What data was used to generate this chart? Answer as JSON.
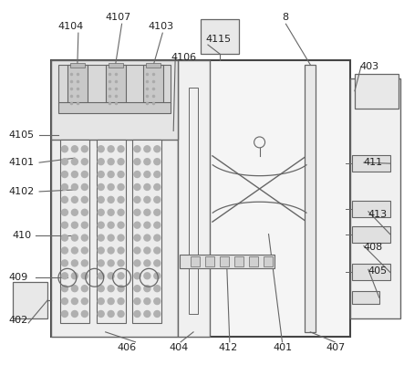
{
  "bg_color": "#ffffff",
  "lc": "#666666",
  "lc_dark": "#444444",
  "fc_main": "#f2f2f2",
  "fc_left": "#ebebeb",
  "fc_top": "#e0e0e0",
  "fc_col": "#e8e8e8",
  "fc_dot": "#bbbbbb",
  "fc_right": "#f0f0f0",
  "fc_box": "#e8e8e8",
  "label_fontsize": 8.0,
  "label_color": "#222222"
}
